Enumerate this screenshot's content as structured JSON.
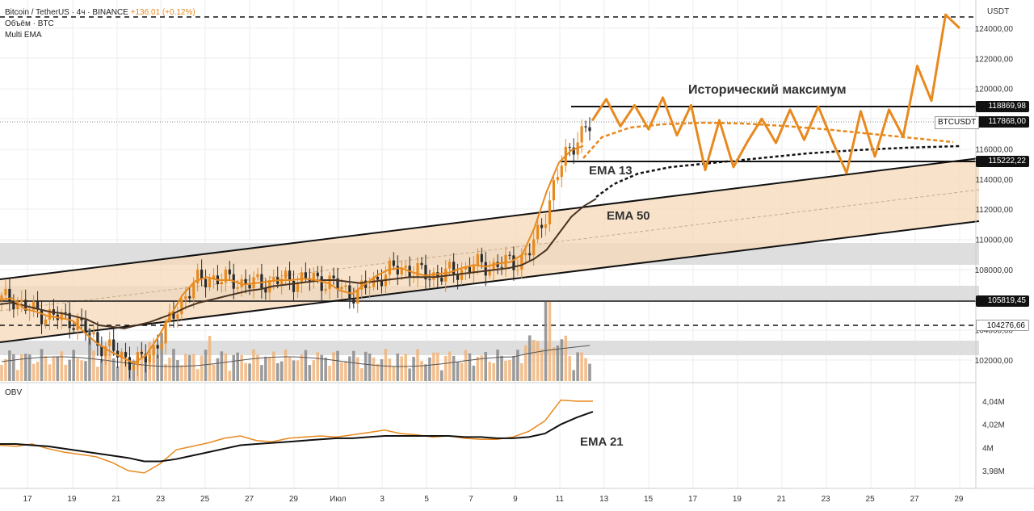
{
  "legend": {
    "symbol_line": "Bitcoin / TetherUS · 4ч · BINANCE",
    "change": "+136.01 (+0.12%)",
    "volume_line": "Объём · BTC",
    "ema_line": "Multi EMA"
  },
  "obv_pane": {
    "label": "OBV"
  },
  "price_axis": {
    "unit": "USDT",
    "ticks": [
      "124000,00",
      "122000,00",
      "120000,00",
      "118000,00",
      "116000,00",
      "114000,00",
      "112000,00",
      "110000,00",
      "108000,00",
      "106000,00",
      "104000,00",
      "102000,00"
    ],
    "tick_values": [
      124000,
      122000,
      120000,
      118000,
      116000,
      114000,
      112000,
      110000,
      108000,
      106000,
      104000,
      102000
    ]
  },
  "obv_axis": {
    "ticks": [
      "4,04M",
      "4,02M",
      "4M",
      "3,98M"
    ],
    "tick_values": [
      4.04,
      4.02,
      4.0,
      3.98
    ]
  },
  "time_axis": {
    "labels": [
      "17",
      "19",
      "21",
      "23",
      "25",
      "27",
      "29",
      "Июл",
      "3",
      "5",
      "7",
      "9",
      "11",
      "13",
      "15",
      "17",
      "19",
      "21",
      "23",
      "25",
      "27",
      "29"
    ]
  },
  "price_labels": [
    {
      "text": "118869,98",
      "value": 118869.98,
      "style": "dark"
    },
    {
      "text": "117868,00",
      "value": 117868.0,
      "style": "dark"
    },
    {
      "text": "115222,22",
      "value": 115222.22,
      "style": "dark"
    },
    {
      "text": "105819,45",
      "value": 105819.45,
      "style": "dark"
    },
    {
      "text": "104276,66",
      "value": 104276.66,
      "style": "light"
    }
  ],
  "symbol_tag": "BTCUSDT",
  "annotations": {
    "ath": "Исторический максимум",
    "ema13": "EMA 13",
    "ema50": "EMA 50",
    "ema21": "EMA 21"
  },
  "colors": {
    "candle_up": "#e8891e",
    "candle_down": "#2b2b2b",
    "ema13": "#e8891e",
    "ema50": "#4a3422",
    "channel_fill": "#f5d9b8",
    "zone_fill": "#dcdcdc",
    "obv": "#e8891e",
    "obv_ema": "#111111"
  },
  "chart_data": {
    "type": "candlestick",
    "y_range": [
      101000,
      125000
    ],
    "horizontal_levels": [
      118869.98,
      115222.22,
      105819.45,
      104276.66,
      124700
    ],
    "projection_path": [
      117868,
      119300,
      117500,
      118900,
      117300,
      119400,
      116900,
      118900,
      114600,
      117900,
      114800,
      116500,
      118000,
      116400,
      118600,
      116600,
      118800,
      116500,
      114400,
      118500,
      115500,
      118600,
      116800,
      121500,
      119200,
      124900,
      124000
    ],
    "ema13_path": [
      106000,
      106100,
      105400,
      105200,
      104900,
      104800,
      104600,
      103800,
      103100,
      102600,
      102200,
      101800,
      102300,
      103500,
      104900,
      106300,
      107200,
      107500,
      107300,
      107300,
      107000,
      107100,
      107200,
      107300,
      107300,
      107400,
      107300,
      107100,
      106600,
      106400,
      107000,
      107600,
      108000,
      108100,
      107800,
      107600,
      107700,
      107800,
      108100,
      108300,
      108200,
      108400,
      108500,
      109000,
      110800,
      113200,
      115100,
      115900,
      116200
    ],
    "ema50_path": [
      105700,
      105800,
      105600,
      105400,
      105200,
      105100,
      104900,
      104700,
      104300,
      104200,
      104100,
      104300,
      104500,
      104800,
      105100,
      105500,
      105800,
      106000,
      106200,
      106400,
      106600,
      106700,
      106900,
      107000,
      107100,
      107200,
      107300,
      107300,
      107200,
      107100,
      107200,
      107300,
      107400,
      107500,
      107500,
      107500,
      107600,
      107700,
      107800,
      107900,
      108000,
      108100,
      108300,
      108700,
      109300,
      110400,
      111500,
      112200,
      112700
    ],
    "obv_values": [
      4.002,
      4.001,
      4.003,
      3.999,
      3.996,
      3.994,
      3.992,
      3.987,
      3.98,
      3.978,
      3.986,
      3.998,
      4.001,
      4.004,
      4.008,
      4.01,
      4.006,
      4.005,
      4.008,
      4.009,
      4.01,
      4.009,
      4.011,
      4.013,
      4.015,
      4.012,
      4.011,
      4.009,
      4.01,
      4.008,
      4.007,
      4.007,
      4.009,
      4.014,
      4.023,
      4.041,
      4.04,
      4.04
    ],
    "obv_ema": [
      4.003,
      4.003,
      4.002,
      4.001,
      3.999,
      3.997,
      3.995,
      3.993,
      3.991,
      3.988,
      3.988,
      3.99,
      3.993,
      3.996,
      3.999,
      4.002,
      4.003,
      4.004,
      4.005,
      4.006,
      4.007,
      4.008,
      4.008,
      4.009,
      4.01,
      4.01,
      4.01,
      4.01,
      4.01,
      4.009,
      4.009,
      4.008,
      4.008,
      4.009,
      4.012,
      4.02,
      4.026,
      4.031
    ]
  }
}
